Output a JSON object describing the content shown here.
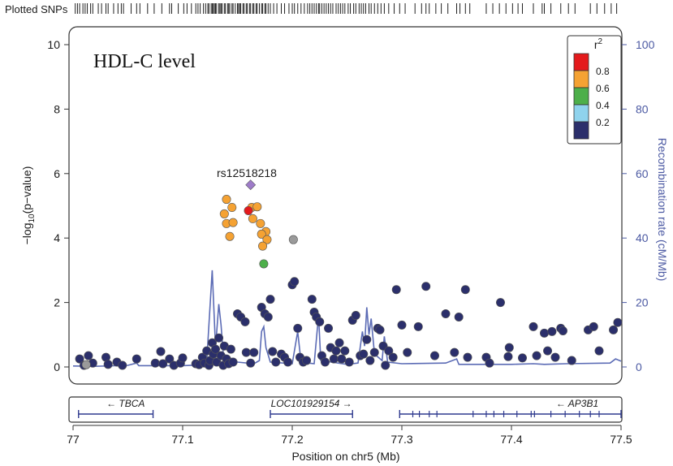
{
  "chart_data": {
    "type": "scatter",
    "title": "HDL-C level",
    "plotted_snps_label": "Plotted SNPs",
    "xlabel": "Position on chr5 (Mb)",
    "ylabel_left": "-log10(p-value)",
    "ylabel_right": "Recombination rate (cM/Mb)",
    "xlim": [
      77.0,
      77.5
    ],
    "ylim_left": [
      0,
      10.5
    ],
    "ylim_right": [
      0,
      105
    ],
    "x_ticks": [
      "77",
      "77.1",
      "77.2",
      "77.3",
      "77.4",
      "77.5"
    ],
    "y_ticks_left": [
      "0",
      "2",
      "4",
      "6",
      "8",
      "10"
    ],
    "y_ticks_right": [
      "0",
      "20",
      "40",
      "60",
      "80",
      "100"
    ],
    "lead_snp": {
      "label": "rs12518218",
      "x": 77.162,
      "y": 5.65
    },
    "legend": {
      "title": "r²",
      "position": "top-right",
      "bins": [
        {
          "label": "0.8",
          "color": "#e41a1c"
        },
        {
          "label": "0.6",
          "color": "#f5a233"
        },
        {
          "label": "0.4",
          "color": "#4daf4a"
        },
        {
          "label": "0.2",
          "color": "#8fd3ed"
        },
        {
          "label": "",
          "color": "#2b2f6b"
        }
      ]
    },
    "colors": {
      "lead": "#9e7bc9",
      "red": "#e41a1c",
      "orange": "#f5a233",
      "green": "#4daf4a",
      "navy": "#2b2f6b",
      "gray": "#9a9a9a",
      "recomb": "#5b6bb5"
    },
    "genes": [
      {
        "name": "TBCA",
        "start": 77.005,
        "end": 77.073,
        "direction": "left"
      },
      {
        "name": "LOC101929154",
        "start": 77.18,
        "end": 77.255,
        "direction": "right"
      },
      {
        "name": "AP3B1",
        "start": 77.298,
        "end": 77.5,
        "direction": "left"
      }
    ],
    "series": [
      {
        "name": "lead",
        "points": [
          [
            77.162,
            5.65
          ]
        ]
      },
      {
        "name": "red",
        "points": [
          [
            77.16,
            4.85
          ]
        ]
      },
      {
        "name": "orange",
        "points": [
          [
            77.14,
            5.2
          ],
          [
            77.145,
            4.95
          ],
          [
            77.138,
            4.75
          ],
          [
            77.14,
            4.45
          ],
          [
            77.146,
            4.48
          ],
          [
            77.143,
            4.05
          ],
          [
            77.163,
            4.95
          ],
          [
            77.168,
            4.97
          ],
          [
            77.164,
            4.6
          ],
          [
            77.171,
            4.45
          ],
          [
            77.176,
            4.2
          ],
          [
            77.172,
            4.12
          ],
          [
            77.177,
            3.95
          ],
          [
            77.173,
            3.75
          ]
        ]
      },
      {
        "name": "green",
        "points": [
          [
            77.174,
            3.2
          ]
        ]
      },
      {
        "name": "gray",
        "points": [
          [
            77.201,
            3.95
          ],
          [
            77.012,
            0.07
          ]
        ]
      },
      {
        "name": "navy",
        "points": [
          [
            77.006,
            0.25
          ],
          [
            77.01,
            0.05
          ],
          [
            77.014,
            0.35
          ],
          [
            77.018,
            0.12
          ],
          [
            77.03,
            0.3
          ],
          [
            77.032,
            0.08
          ],
          [
            77.04,
            0.15
          ],
          [
            77.045,
            0.05
          ],
          [
            77.058,
            0.25
          ],
          [
            77.075,
            0.12
          ],
          [
            77.08,
            0.48
          ],
          [
            77.082,
            0.1
          ],
          [
            77.088,
            0.25
          ],
          [
            77.092,
            0.05
          ],
          [
            77.098,
            0.12
          ],
          [
            77.1,
            0.28
          ],
          [
            77.112,
            0.1
          ],
          [
            77.115,
            0.07
          ],
          [
            77.118,
            0.3
          ],
          [
            77.12,
            0.12
          ],
          [
            77.122,
            0.5
          ],
          [
            77.124,
            0.05
          ],
          [
            77.125,
            0.2
          ],
          [
            77.127,
            0.75
          ],
          [
            77.128,
            0.4
          ],
          [
            77.13,
            0.55
          ],
          [
            77.131,
            0.15
          ],
          [
            77.133,
            0.9
          ],
          [
            77.135,
            0.35
          ],
          [
            77.137,
            0.05
          ],
          [
            77.138,
            0.65
          ],
          [
            77.14,
            0.25
          ],
          [
            77.142,
            0.1
          ],
          [
            77.144,
            0.55
          ],
          [
            77.146,
            0.15
          ],
          [
            77.15,
            1.65
          ],
          [
            77.153,
            1.55
          ],
          [
            77.157,
            1.4
          ],
          [
            77.158,
            0.45
          ],
          [
            77.162,
            0.12
          ],
          [
            77.165,
            0.45
          ],
          [
            77.172,
            1.85
          ],
          [
            77.175,
            1.65
          ],
          [
            77.178,
            1.55
          ],
          [
            77.18,
            2.1
          ],
          [
            77.182,
            0.48
          ],
          [
            77.185,
            0.15
          ],
          [
            77.19,
            0.4
          ],
          [
            77.193,
            0.3
          ],
          [
            77.196,
            0.15
          ],
          [
            77.2,
            2.55
          ],
          [
            77.202,
            2.65
          ],
          [
            77.205,
            1.2
          ],
          [
            77.207,
            0.3
          ],
          [
            77.21,
            0.15
          ],
          [
            77.213,
            0.2
          ],
          [
            77.218,
            2.1
          ],
          [
            77.22,
            1.7
          ],
          [
            77.222,
            1.55
          ],
          [
            77.225,
            1.4
          ],
          [
            77.227,
            0.35
          ],
          [
            77.23,
            0.15
          ],
          [
            77.233,
            1.2
          ],
          [
            77.235,
            0.6
          ],
          [
            77.238,
            0.25
          ],
          [
            77.24,
            0.5
          ],
          [
            77.243,
            0.75
          ],
          [
            77.245,
            0.25
          ],
          [
            77.248,
            0.5
          ],
          [
            77.252,
            0.15
          ],
          [
            77.255,
            1.45
          ],
          [
            77.258,
            1.6
          ],
          [
            77.262,
            0.35
          ],
          [
            77.265,
            0.4
          ],
          [
            77.268,
            0.85
          ],
          [
            77.271,
            0.2
          ],
          [
            77.275,
            0.45
          ],
          [
            77.278,
            1.2
          ],
          [
            77.28,
            1.15
          ],
          [
            77.283,
            0.65
          ],
          [
            77.285,
            0.05
          ],
          [
            77.288,
            0.5
          ],
          [
            77.292,
            0.3
          ],
          [
            77.295,
            2.4
          ],
          [
            77.3,
            1.3
          ],
          [
            77.305,
            0.45
          ],
          [
            77.315,
            1.25
          ],
          [
            77.322,
            2.5
          ],
          [
            77.33,
            0.35
          ],
          [
            77.34,
            1.65
          ],
          [
            77.348,
            0.45
          ],
          [
            77.352,
            1.55
          ],
          [
            77.358,
            2.4
          ],
          [
            77.36,
            0.3
          ],
          [
            77.377,
            0.3
          ],
          [
            77.38,
            0.12
          ],
          [
            77.39,
            2.0
          ],
          [
            77.397,
            0.32
          ],
          [
            77.398,
            0.6
          ],
          [
            77.41,
            0.28
          ],
          [
            77.42,
            1.25
          ],
          [
            77.423,
            0.35
          ],
          [
            77.43,
            1.05
          ],
          [
            77.433,
            0.5
          ],
          [
            77.437,
            1.1
          ],
          [
            77.44,
            0.3
          ],
          [
            77.445,
            1.2
          ],
          [
            77.447,
            1.12
          ],
          [
            77.455,
            0.2
          ],
          [
            77.47,
            1.15
          ],
          [
            77.475,
            1.25
          ],
          [
            77.48,
            0.5
          ],
          [
            77.493,
            1.15
          ],
          [
            77.497,
            1.38
          ]
        ]
      }
    ],
    "recombination": [
      [
        77.0,
        0.3
      ],
      [
        77.02,
        0.2
      ],
      [
        77.05,
        0.5
      ],
      [
        77.058,
        1.2
      ],
      [
        77.06,
        0.4
      ],
      [
        77.1,
        0.4
      ],
      [
        77.115,
        0.6
      ],
      [
        77.122,
        2.0
      ],
      [
        77.127,
        30.0
      ],
      [
        77.13,
        6.0
      ],
      [
        77.133,
        19.5
      ],
      [
        77.135,
        13.0
      ],
      [
        77.137,
        4.0
      ],
      [
        77.15,
        1.5
      ],
      [
        77.165,
        1.0
      ],
      [
        77.17,
        2.0
      ],
      [
        77.172,
        11.0
      ],
      [
        77.174,
        12.5
      ],
      [
        77.176,
        6.0
      ],
      [
        77.18,
        1.5
      ],
      [
        77.2,
        1.0
      ],
      [
        77.205,
        11.0
      ],
      [
        77.208,
        1.5
      ],
      [
        77.22,
        1.0
      ],
      [
        77.224,
        16.0
      ],
      [
        77.226,
        2.0
      ],
      [
        77.25,
        0.8
      ],
      [
        77.26,
        1.2
      ],
      [
        77.264,
        11.0
      ],
      [
        77.266,
        6.5
      ],
      [
        77.268,
        18.5
      ],
      [
        77.27,
        10.0
      ],
      [
        77.272,
        15.0
      ],
      [
        77.275,
        4.0
      ],
      [
        77.282,
        2.0
      ],
      [
        77.284,
        9.5
      ],
      [
        77.287,
        1.5
      ],
      [
        77.3,
        1.0
      ],
      [
        77.34,
        1.2
      ],
      [
        77.35,
        2.5
      ],
      [
        77.352,
        0.8
      ],
      [
        77.4,
        0.8
      ],
      [
        77.42,
        1.0
      ],
      [
        77.43,
        0.8
      ],
      [
        77.45,
        1.0
      ],
      [
        77.49,
        1.2
      ],
      [
        77.495,
        2.5
      ],
      [
        77.5,
        1.8
      ]
    ],
    "snp_track": [
      77.002,
      77.004,
      77.006,
      77.009,
      77.011,
      77.013,
      77.016,
      77.018,
      77.023,
      77.026,
      77.03,
      77.032,
      77.037,
      77.041,
      77.044,
      77.046,
      77.053,
      77.058,
      77.061,
      77.068,
      77.074,
      77.081,
      77.088,
      77.09,
      77.096,
      77.101,
      77.104,
      77.108,
      77.112,
      77.114,
      77.116,
      77.119,
      77.121,
      77.123,
      77.124,
      77.126,
      77.127,
      77.128,
      77.129,
      77.13,
      77.131,
      77.133,
      77.134,
      77.135,
      77.136,
      77.138,
      77.139,
      77.141,
      77.142,
      77.143,
      77.145,
      77.146,
      77.148,
      77.15,
      77.151,
      77.152,
      77.153,
      77.155,
      77.156,
      77.158,
      77.159,
      77.161,
      77.162,
      77.164,
      77.165,
      77.167,
      77.168,
      77.17,
      77.172,
      77.173,
      77.175,
      77.176,
      77.178,
      77.18,
      77.183,
      77.186,
      77.19,
      77.193,
      77.197,
      77.2,
      77.202,
      77.205,
      77.208,
      77.211,
      77.214,
      77.216,
      77.218,
      77.22,
      77.222,
      77.224,
      77.225,
      77.227,
      77.229,
      77.231,
      77.233,
      77.235,
      77.237,
      77.24,
      77.242,
      77.244,
      77.246,
      77.248,
      77.251,
      77.253,
      77.256,
      77.258,
      77.261,
      77.263,
      77.265,
      77.267,
      77.27,
      77.272,
      77.275,
      77.278,
      77.281,
      77.284,
      77.288,
      77.293,
      77.298,
      77.303,
      77.312,
      77.318,
      77.322,
      77.325,
      77.331,
      77.336,
      77.342,
      77.35,
      77.353,
      77.358,
      77.362,
      77.377,
      77.383,
      77.389,
      77.395,
      77.401,
      77.406,
      77.41,
      77.42,
      77.428,
      77.43,
      77.436,
      77.445,
      77.452,
      77.458,
      77.472,
      77.478,
      77.485,
      77.491,
      77.496
    ]
  }
}
